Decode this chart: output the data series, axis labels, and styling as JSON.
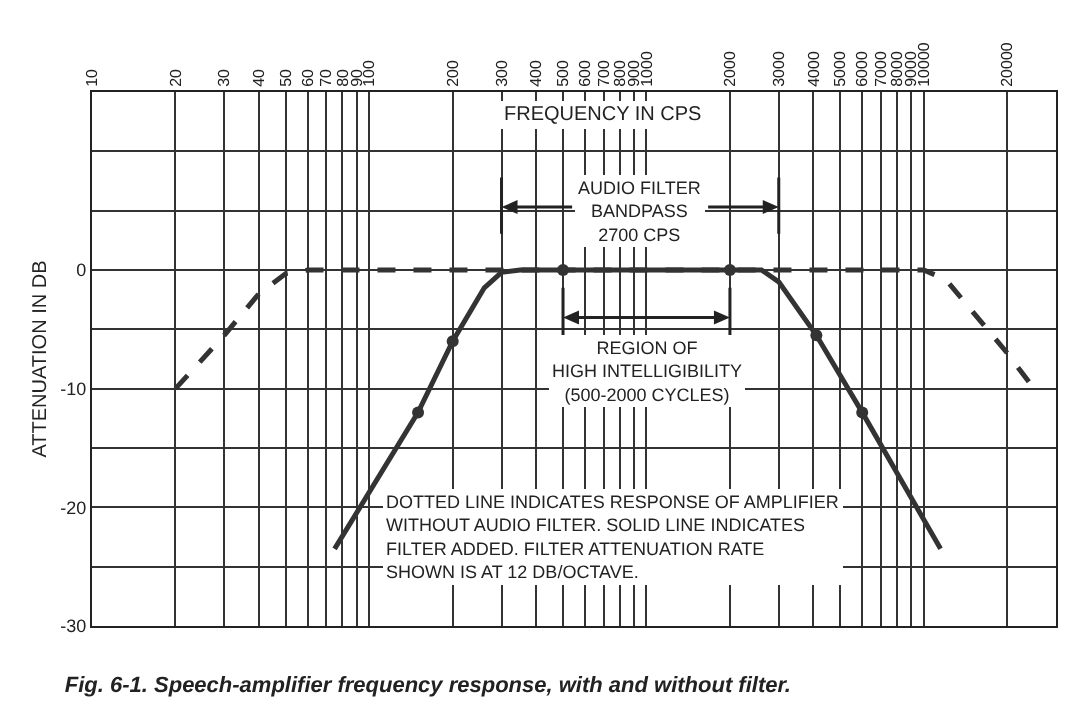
{
  "chart_data": {
    "type": "line",
    "title": "Fig. 6-1. Speech-amplifier frequency response, with and without filter.",
    "xlabel": "FREQUENCY IN CPS",
    "ylabel": "ATTENUATION IN DB",
    "log": "x",
    "grid": true,
    "xlim": [
      10,
      30000
    ],
    "ylim": [
      -30,
      15
    ],
    "xticks": [
      10,
      20,
      30,
      40,
      50,
      60,
      70,
      80,
      90,
      100,
      200,
      300,
      400,
      500,
      600,
      700,
      800,
      900,
      1000,
      2000,
      3000,
      4000,
      5000,
      6000,
      7000,
      8000,
      9000,
      10000,
      20000
    ],
    "yticks": [
      -30,
      {
        "value": -25,
        "label": null
      },
      -20,
      {
        "value": -15,
        "label": null
      },
      -10,
      {
        "value": -5,
        "label": null
      },
      0,
      {
        "value": 5,
        "label": null
      },
      {
        "value": 10,
        "label": null
      },
      {
        "value": 15,
        "label": null
      }
    ],
    "series": [
      {
        "line_style": "dashed",
        "color": "#333333",
        "x": [
          20,
          30,
          40,
          50,
          60,
          100,
          1000,
          10000,
          12000,
          15000,
          20000,
          25000
        ],
        "values": [
          -10,
          -5.5,
          -2,
          -0.3,
          0,
          0,
          0,
          0,
          -0.8,
          -3.5,
          -7,
          -10
        ]
      },
      {
        "line_style": "solid",
        "color": "#333333",
        "x": [
          75,
          150,
          200,
          260,
          300,
          350,
          500,
          2000,
          2600,
          3000,
          4100,
          6000,
          11500
        ],
        "values": [
          -23.5,
          -12,
          -6,
          -1.5,
          -0.2,
          0,
          0,
          0,
          0,
          -1,
          -5.5,
          -12,
          -23.5
        ]
      },
      {
        "type": "scatter",
        "marker": "circle",
        "color": "#333333",
        "x": [
          150,
          200,
          500,
          2000,
          4100,
          6000
        ],
        "values": [
          -12,
          -6,
          0,
          0,
          -5.5,
          -12
        ]
      }
    ],
    "ref_lines": [
      {
        "axis": "x",
        "value": 300
      },
      {
        "axis": "x",
        "value": 3000
      },
      {
        "axis": "x",
        "value": 500
      },
      {
        "axis": "x",
        "value": 2000
      }
    ],
    "annotations": [
      "AUDIO FILTER\nBANDPASS\n2700 CPS",
      "REGION OF\nHIGH INTELLIGIBILITY\n(500-2000 CYCLES)",
      "DOTTED LINE INDICATES RESPONSE OF AMPLIFIER\nWITHOUT AUDIO FILTER. SOLID LINE INDICATES\nFILTER ADDED. FILTER ATTENUATION RATE\nSHOWN IS AT 12 DB/OCTAVE."
    ]
  }
}
